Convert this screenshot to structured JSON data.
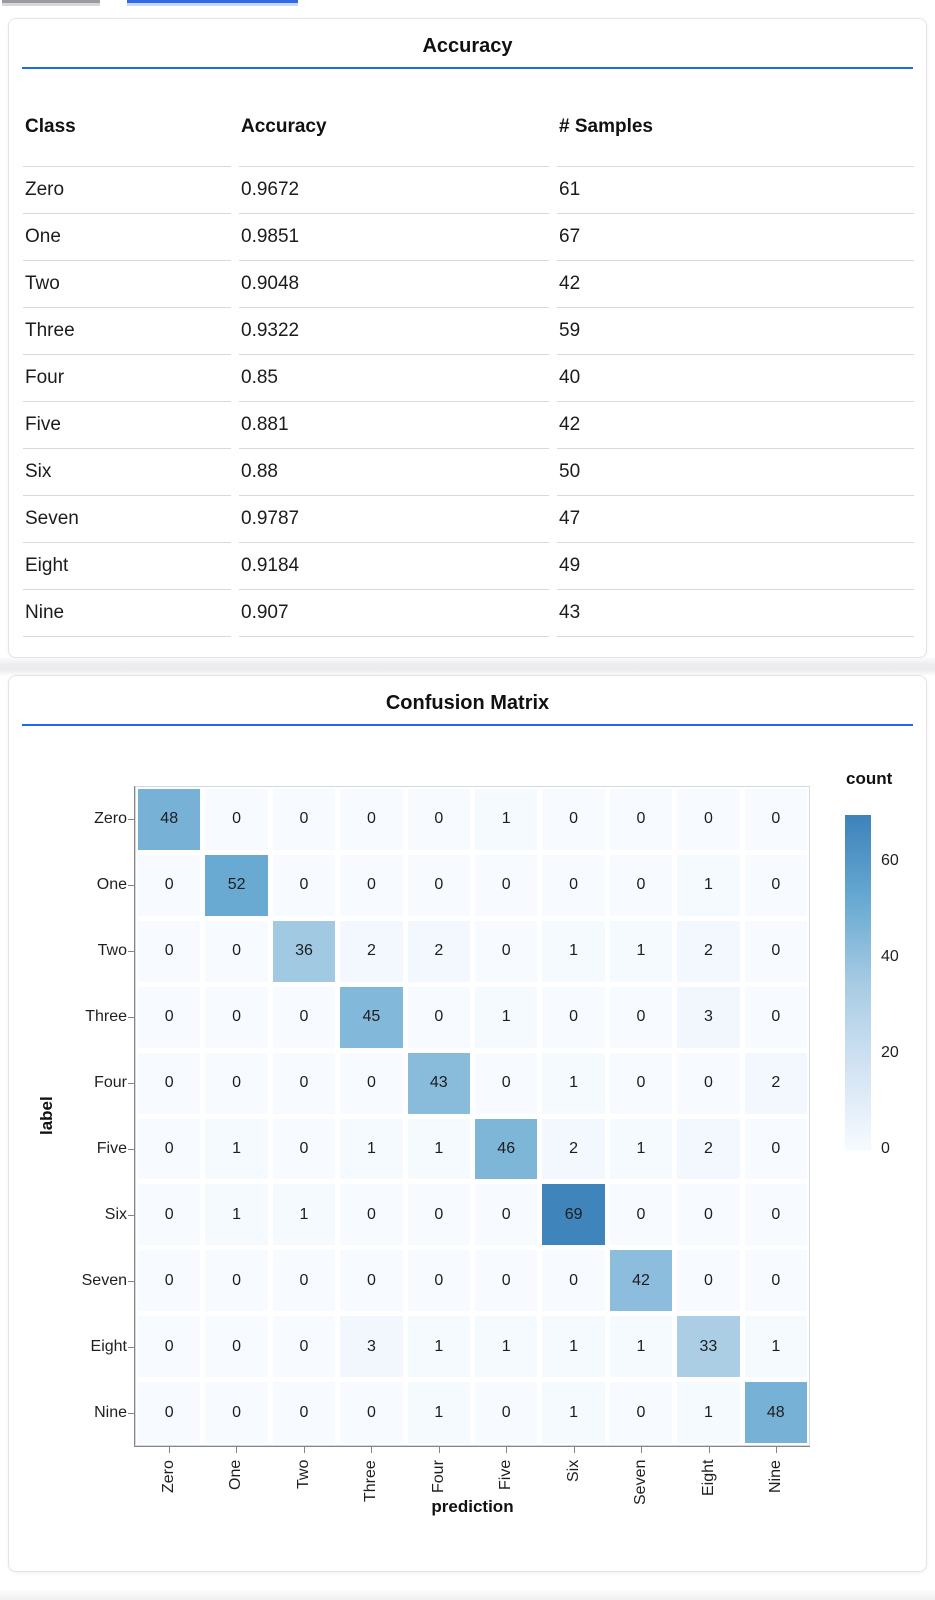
{
  "page": {
    "tabs": {
      "inactive_indicator_color": "#9c9ca0",
      "active_indicator_color": "#2f6be4"
    },
    "accent_rule_color": "#1b6ce8"
  },
  "chart_data": [
    {
      "type": "table",
      "title": "Accuracy",
      "columns": [
        "Class",
        "Accuracy",
        "# Samples"
      ],
      "rows": [
        [
          "Zero",
          "0.9672",
          "61"
        ],
        [
          "One",
          "0.9851",
          "67"
        ],
        [
          "Two",
          "0.9048",
          "42"
        ],
        [
          "Three",
          "0.9322",
          "59"
        ],
        [
          "Four",
          "0.85",
          "40"
        ],
        [
          "Five",
          "0.881",
          "42"
        ],
        [
          "Six",
          "0.88",
          "50"
        ],
        [
          "Seven",
          "0.9787",
          "47"
        ],
        [
          "Eight",
          "0.9184",
          "49"
        ],
        [
          "Nine",
          "0.907",
          "43"
        ]
      ]
    },
    {
      "type": "heatmap",
      "title": "Confusion Matrix",
      "xlabel": "prediction",
      "ylabel": "label",
      "categories": [
        "Zero",
        "One",
        "Two",
        "Three",
        "Four",
        "Five",
        "Six",
        "Seven",
        "Eight",
        "Nine"
      ],
      "matrix": [
        [
          48,
          0,
          0,
          0,
          0,
          1,
          0,
          0,
          0,
          0
        ],
        [
          0,
          52,
          0,
          0,
          0,
          0,
          0,
          0,
          1,
          0
        ],
        [
          0,
          0,
          36,
          2,
          2,
          0,
          1,
          1,
          2,
          0
        ],
        [
          0,
          0,
          0,
          45,
          0,
          1,
          0,
          0,
          3,
          0
        ],
        [
          0,
          0,
          0,
          0,
          43,
          0,
          1,
          0,
          0,
          2
        ],
        [
          0,
          1,
          0,
          1,
          1,
          46,
          2,
          1,
          2,
          0
        ],
        [
          0,
          1,
          1,
          0,
          0,
          0,
          69,
          0,
          0,
          0
        ],
        [
          0,
          0,
          0,
          0,
          0,
          0,
          0,
          42,
          0,
          0
        ],
        [
          0,
          0,
          0,
          3,
          1,
          1,
          1,
          1,
          33,
          1
        ],
        [
          0,
          0,
          0,
          0,
          1,
          0,
          1,
          0,
          1,
          48
        ]
      ],
      "legend": {
        "title": "count",
        "ticks": [
          60,
          40,
          20,
          0
        ],
        "domain": [
          0,
          70
        ],
        "position": "right"
      },
      "color_stops": [
        "#f7fbff",
        "#d2e3f3",
        "#a6cbe3",
        "#67a9d2",
        "#3d82ba"
      ],
      "grid": false
    }
  ]
}
